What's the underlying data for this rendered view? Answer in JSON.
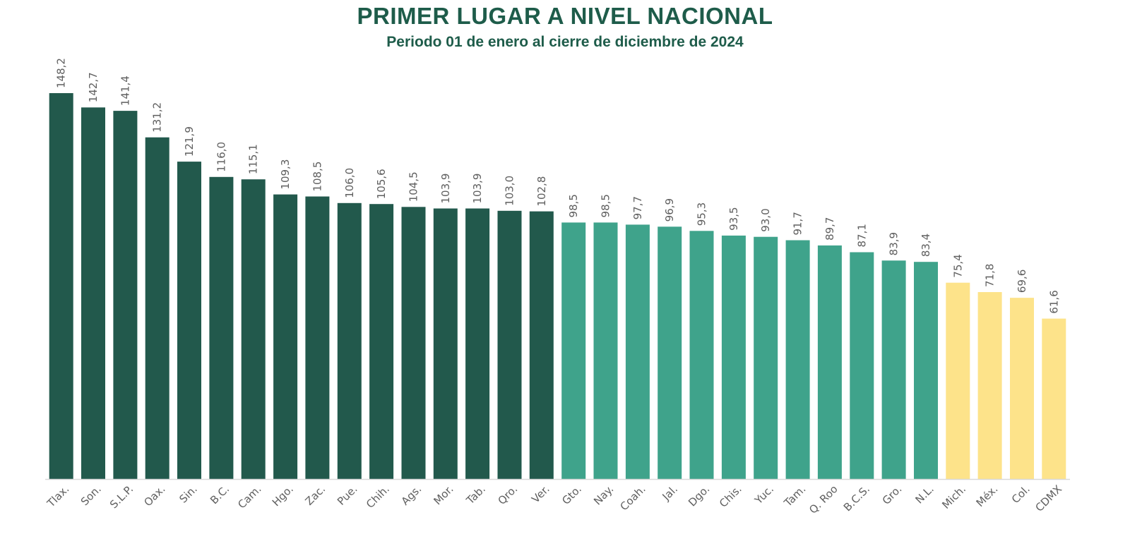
{
  "title": "PRIMER LUGAR A NIVEL NACIONAL",
  "subtitle": "Periodo 01 de enero al cierre de diciembre de 2024",
  "colors": {
    "dark": "#22594c",
    "teal": "#3fa38b",
    "yellow": "#fde38a",
    "axis": "#d9d9d9",
    "title": "#1e5c4a"
  },
  "chart_data": {
    "type": "bar",
    "title": "PRIMER LUGAR A NIVEL NACIONAL",
    "subtitle": "Periodo 01 de enero al cierre de diciembre de 2024",
    "xlabel": "",
    "ylabel": "",
    "ylim": [
      0,
      148.2
    ],
    "grid": false,
    "categories": [
      "Tlax.",
      "Son.",
      "S.L.P.",
      "Oax.",
      "Sin.",
      "B.C.",
      "Cam.",
      "Hgo.",
      "Zac.",
      "Pue.",
      "Chih.",
      "Ags.",
      "Mor.",
      "Tab.",
      "Qro.",
      "Ver.",
      "Gto.",
      "Nay.",
      "Coah.",
      "Jal.",
      "Dgo.",
      "Chis.",
      "Yuc.",
      "Tam.",
      "Q. Roo",
      "B.C.S.",
      "Gro.",
      "N.L.",
      "Mich.",
      "Méx.",
      "Col.",
      "CDMX"
    ],
    "values": [
      148.2,
      142.7,
      141.4,
      131.2,
      121.9,
      116.0,
      115.1,
      109.3,
      108.5,
      106.0,
      105.6,
      104.5,
      103.9,
      103.9,
      103.0,
      102.8,
      98.5,
      98.5,
      97.7,
      96.9,
      95.3,
      93.5,
      93.0,
      91.7,
      89.7,
      87.1,
      83.9,
      83.4,
      75.4,
      71.8,
      69.6,
      61.6
    ],
    "value_labels": [
      "148,2",
      "142,7",
      "141,4",
      "131,2",
      "121,9",
      "116,0",
      "115,1",
      "109,3",
      "108,5",
      "106,0",
      "105,6",
      "104,5",
      "103,9",
      "103,9",
      "103,0",
      "102,8",
      "98,5",
      "98,5",
      "97,7",
      "96,9",
      "95,3",
      "93,5",
      "93,0",
      "91,7",
      "89,7",
      "87,1",
      "83,9",
      "83,4",
      "75,4",
      "71,8",
      "69,6",
      "61,6"
    ],
    "groups": [
      "dark",
      "dark",
      "dark",
      "dark",
      "dark",
      "dark",
      "dark",
      "dark",
      "dark",
      "dark",
      "dark",
      "dark",
      "dark",
      "dark",
      "dark",
      "dark",
      "teal",
      "teal",
      "teal",
      "teal",
      "teal",
      "teal",
      "teal",
      "teal",
      "teal",
      "teal",
      "teal",
      "teal",
      "yellow",
      "yellow",
      "yellow",
      "yellow"
    ]
  }
}
